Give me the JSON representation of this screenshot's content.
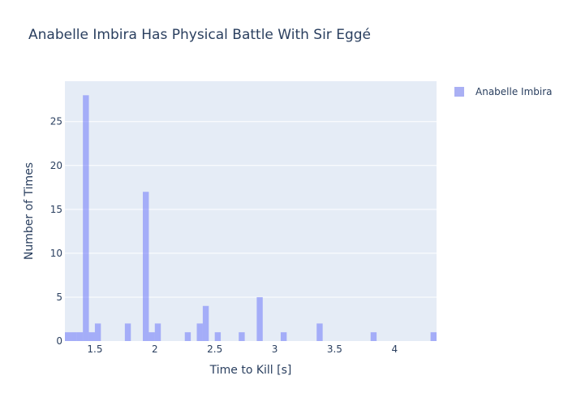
{
  "chart_data": {
    "type": "bar",
    "title": "Anabelle Imbira Has Physical Battle With Sir Eggé",
    "xlabel": "Time to Kill [s]",
    "ylabel": "Number of Times",
    "xlim": [
      1.25,
      4.35
    ],
    "ylim": [
      0,
      29.6
    ],
    "x_ticks": [
      1.5,
      2,
      2.5,
      3,
      3.5,
      4
    ],
    "x_tick_labels": [
      "1.5",
      "2",
      "2.5",
      "3",
      "3.5",
      "4"
    ],
    "y_ticks": [
      0,
      5,
      10,
      15,
      20,
      25
    ],
    "y_tick_labels": [
      "0",
      "5",
      "10",
      "15",
      "20",
      "25"
    ],
    "legend_position": "top-right",
    "grid": true,
    "colors": {
      "bar": "#636efa",
      "plot_bg": "#e5ecf6",
      "grid": "#ffffff",
      "text": "#2a3f5f"
    },
    "series": [
      {
        "name": "Anabelle Imbira",
        "bin_width": 0.05,
        "bins": [
          {
            "x0": 1.25,
            "count": 1
          },
          {
            "x0": 1.3,
            "count": 1
          },
          {
            "x0": 1.35,
            "count": 1
          },
          {
            "x0": 1.4,
            "count": 28
          },
          {
            "x0": 1.45,
            "count": 1
          },
          {
            "x0": 1.5,
            "count": 2
          },
          {
            "x0": 1.75,
            "count": 2
          },
          {
            "x0": 1.9,
            "count": 17
          },
          {
            "x0": 1.95,
            "count": 1
          },
          {
            "x0": 2.0,
            "count": 2
          },
          {
            "x0": 2.25,
            "count": 1
          },
          {
            "x0": 2.35,
            "count": 2
          },
          {
            "x0": 2.4,
            "count": 4
          },
          {
            "x0": 2.5,
            "count": 1
          },
          {
            "x0": 2.7,
            "count": 1
          },
          {
            "x0": 2.85,
            "count": 5
          },
          {
            "x0": 3.05,
            "count": 1
          },
          {
            "x0": 3.35,
            "count": 2
          },
          {
            "x0": 3.8,
            "count": 1
          },
          {
            "x0": 4.3,
            "count": 1
          }
        ]
      }
    ]
  }
}
